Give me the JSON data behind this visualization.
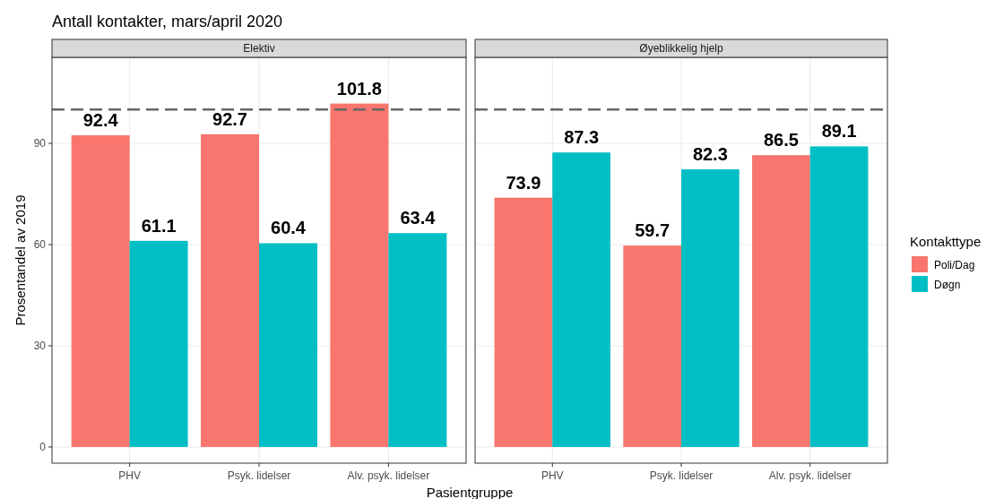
{
  "chart_data": [
    {
      "type": "bar",
      "title": "Antall kontakter, mars/april 2020",
      "subtitle": "Elektiv",
      "xlabel": "Pasientgruppe",
      "ylabel": "Prosentandel av 2019",
      "categories": [
        "PHV",
        "Psyk. lidelser",
        "Alv. psyk. lidelser"
      ],
      "series": [
        {
          "color": "#f8766d",
          "values": [
            92.4,
            92.7,
            101.8
          ]
        },
        {
          "color": "#00bfc4",
          "values": [
            61.1,
            60.4,
            63.4
          ]
        }
      ],
      "ylim": [
        -4.8,
        115.5
      ],
      "yticks": [
        0,
        30,
        60,
        90
      ],
      "grid": true,
      "data_labels": true,
      "legend": false,
      "ref_lines": [
        {
          "axis": "y",
          "value": 100,
          "color": "#666666",
          "line_style": "dashed"
        }
      ]
    },
    {
      "type": "bar",
      "subtitle": "Øyeblikkelig hjelp",
      "categories": [
        "PHV",
        "Psyk. lidelser",
        "Alv. psyk. lidelser"
      ],
      "series": [
        {
          "name": "Poli/Dag",
          "color": "#f8766d",
          "values": [
            73.9,
            59.7,
            86.5
          ]
        },
        {
          "name": "Døgn",
          "color": "#00bfc4",
          "values": [
            87.3,
            82.3,
            89.1
          ]
        }
      ],
      "ylim": [
        -4.8,
        115.5
      ],
      "yticks": [
        0,
        30,
        60,
        90
      ],
      "tick_labels": "x",
      "grid": true,
      "data_labels": true,
      "legend": "right",
      "legend_title": "Kontakttype",
      "ref_lines": [
        {
          "axis": "y",
          "value": 100,
          "color": "#666666",
          "line_style": "dashed"
        }
      ]
    }
  ]
}
